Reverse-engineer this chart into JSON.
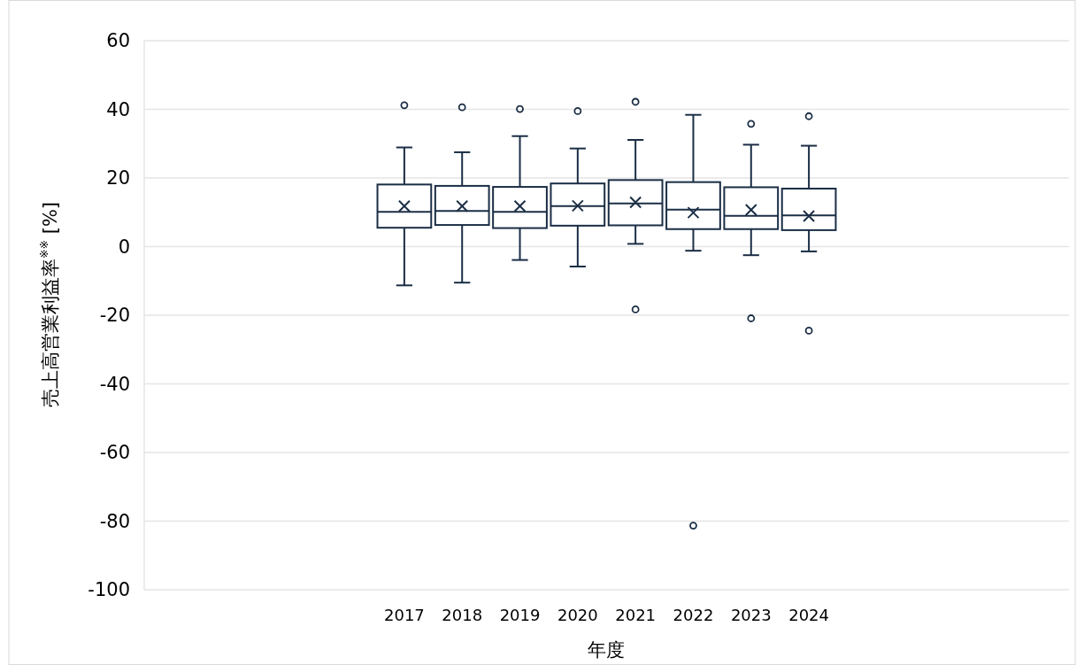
{
  "chart_data": {
    "type": "box",
    "xlabel": "年度",
    "ylabel": "売上高営業利益率$^{※※}$ [%]",
    "categories": [
      null,
      null,
      null,
      null,
      "2017",
      "2018",
      "2019",
      "2020",
      "2021",
      "2022",
      "2023",
      "2024",
      null,
      null,
      null,
      null
    ],
    "color": "#1b2e45",
    "ylim": [
      -100,
      60
    ],
    "yticks": [
      -100,
      -80,
      -60,
      -40,
      -20,
      0,
      20,
      40,
      60
    ],
    "grid": "y",
    "boxes": [
      null,
      null,
      null,
      null,
      {
        "low": -11.3,
        "q1": 5.5,
        "median": 10.1,
        "q3": 18.1,
        "high": 28.9,
        "mean": 11.8,
        "outliers": [
          41.2
        ]
      },
      {
        "low": -10.5,
        "q1": 6.3,
        "median": 10.4,
        "q3": 17.7,
        "high": 27.5,
        "mean": 11.8,
        "outliers": [
          40.6
        ]
      },
      {
        "low": -3.9,
        "q1": 5.4,
        "median": 10.1,
        "q3": 17.4,
        "high": 32.2,
        "mean": 11.8,
        "outliers": [
          40.1
        ]
      },
      {
        "low": -5.8,
        "q1": 6.1,
        "median": 11.8,
        "q3": 18.4,
        "high": 28.6,
        "mean": 11.9,
        "outliers": [
          39.5
        ]
      },
      {
        "low": 0.8,
        "q1": 6.2,
        "median": 12.6,
        "q3": 19.4,
        "high": 31.1,
        "mean": 12.9,
        "outliers": [
          42.2,
          -18.3
        ]
      },
      {
        "low": -1.2,
        "q1": 5.1,
        "median": 10.8,
        "q3": 18.8,
        "high": 38.4,
        "mean": 9.9,
        "outliers": [
          -81.3
        ]
      },
      {
        "low": -2.5,
        "q1": 5.1,
        "median": 9.0,
        "q3": 17.3,
        "high": 29.7,
        "mean": 10.7,
        "outliers": [
          35.8,
          -20.9
        ]
      },
      {
        "low": -1.4,
        "q1": 4.8,
        "median": 9.1,
        "q3": 16.9,
        "high": 29.4,
        "mean": 8.9,
        "outliers": [
          38.0,
          -24.5
        ]
      },
      null,
      null,
      null,
      null
    ]
  }
}
